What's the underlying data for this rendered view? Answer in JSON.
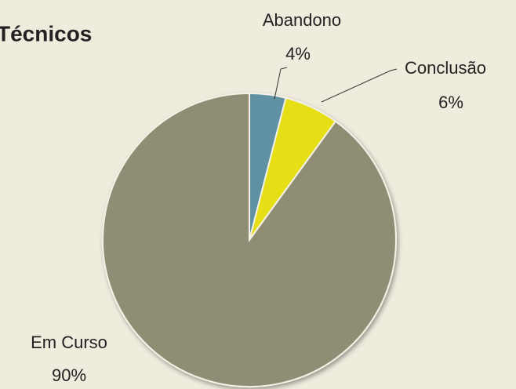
{
  "chart_data": {
    "type": "pie",
    "title": "Técnicos",
    "categories": [
      "Abandono",
      "Conclusão",
      "Em Curso"
    ],
    "values": [
      4,
      6,
      90
    ],
    "value_labels": [
      "4%",
      "6%",
      "90%"
    ],
    "colors": [
      "#5e91a2",
      "#e6df12",
      "#8f8d73"
    ]
  }
}
